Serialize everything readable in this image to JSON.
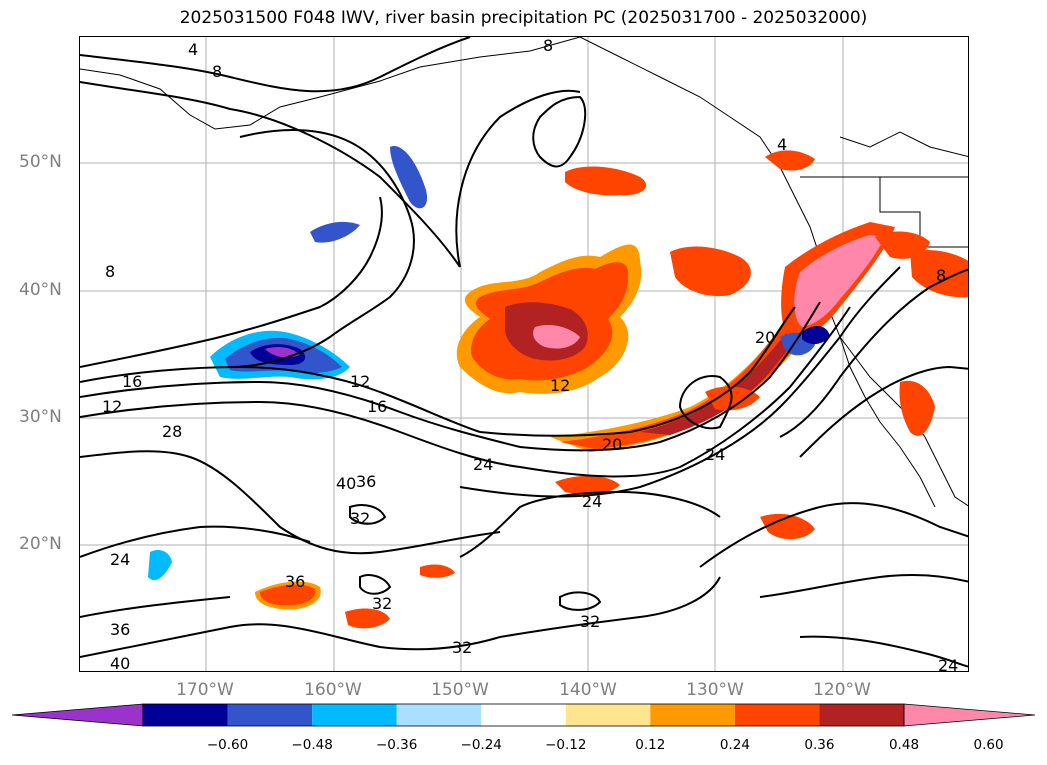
{
  "title": "2025031500 F048 IWV, river basin precipitation PC (2025031700 - 2025032000)",
  "lat_labels": [
    "50°N",
    "40°N",
    "30°N",
    "20°N"
  ],
  "lon_labels": [
    "170°W",
    "160°W",
    "150°W",
    "140°W",
    "130°W",
    "120°W"
  ],
  "colorbar": {
    "ticks": [
      "−0.60",
      "−0.48",
      "−0.36",
      "−0.24",
      "−0.12",
      "0.12",
      "0.24",
      "0.36",
      "0.48",
      "0.60"
    ],
    "colors": [
      "#9933cc",
      "#000099",
      "#3355cc",
      "#00bbff",
      "#aae0ff",
      "#ffffff",
      "#ffe58f",
      "#ff9900",
      "#ff4400",
      "#b22222",
      "#ff88aa"
    ]
  },
  "contour_labels": [
    "4",
    "8",
    "8",
    "8",
    "12",
    "12",
    "16",
    "16",
    "28",
    "12",
    "24",
    "20",
    "24",
    "24",
    "40",
    "36",
    "32",
    "24",
    "36",
    "32",
    "36",
    "40",
    "32",
    "32",
    "24",
    "20",
    "4",
    "8"
  ]
}
